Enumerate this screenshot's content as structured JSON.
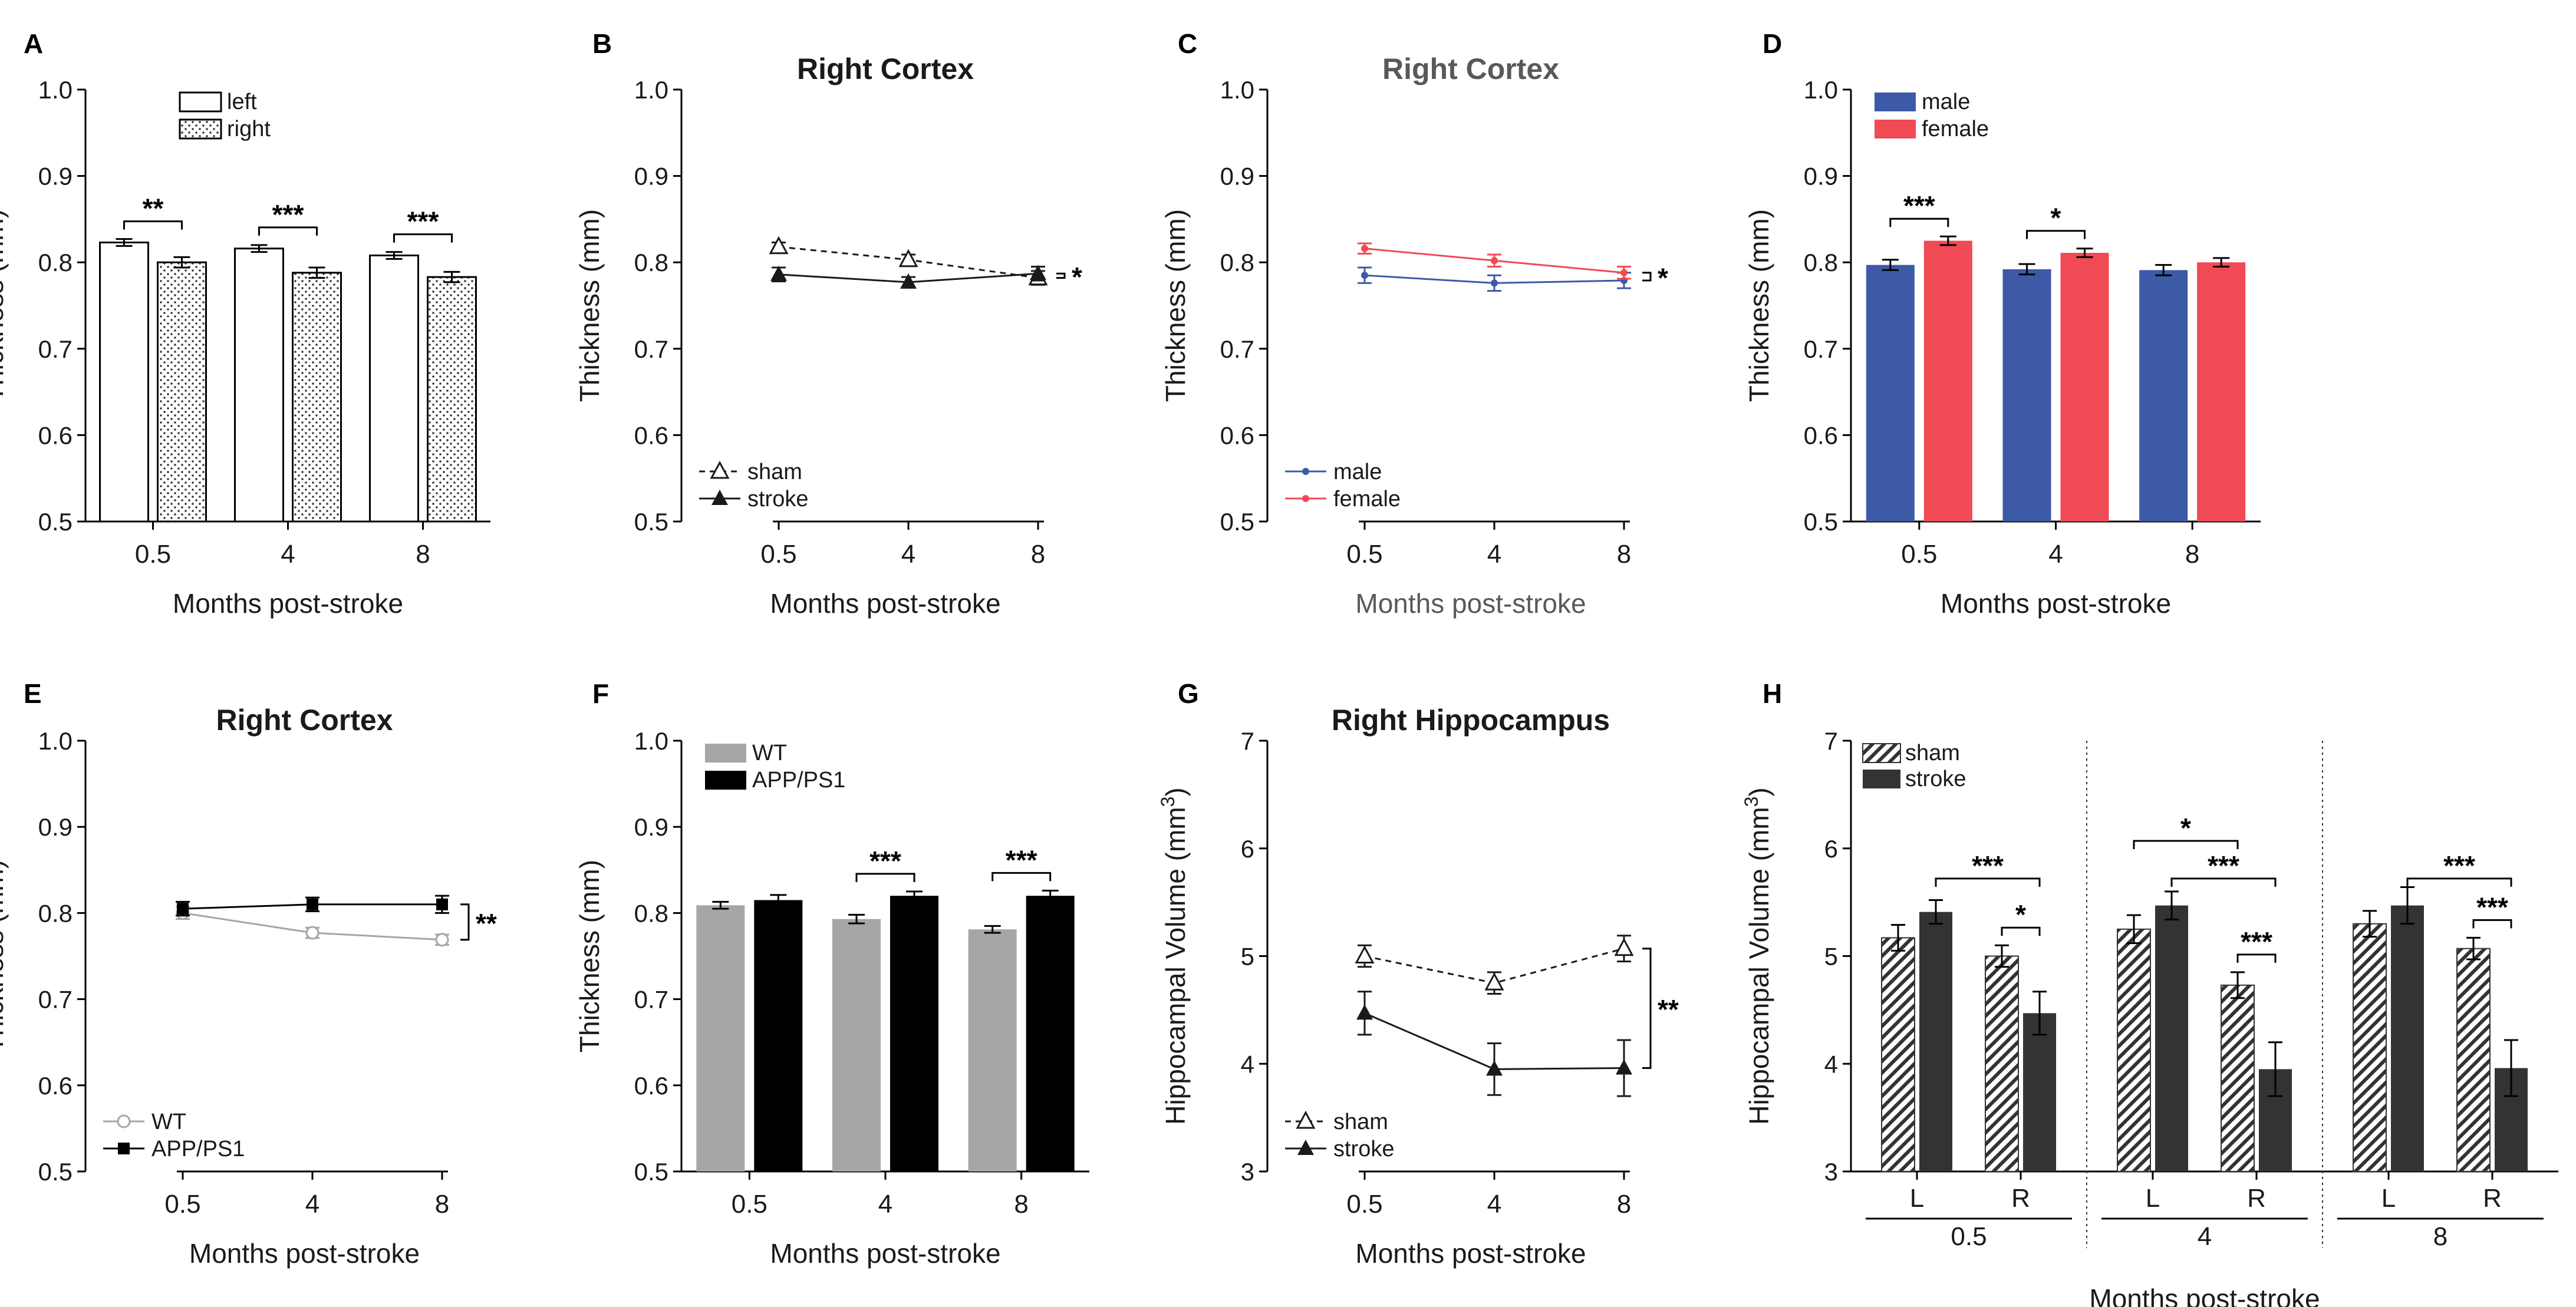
{
  "figure": {
    "shared_xlabel": "Months post-stroke",
    "shared_ylabel": "Thickness (mm)"
  },
  "colors": {
    "male": "#3c5aa6",
    "female": "#f04a55",
    "wt": "#a6a6a8",
    "app": "#000000",
    "stroke_bar": "#333333",
    "dark": "#1a1a1a",
    "gray_text": "#595959"
  },
  "chart_data": [
    {
      "panel": "A",
      "type": "bar",
      "title": "",
      "xlabel": "Months post-stroke",
      "ylabel": "Thickness (mm)",
      "ylim": [
        0.5,
        1.0
      ],
      "yticks": [
        "0.5",
        "0.6",
        "0.7",
        "0.8",
        "0.9",
        "1.0"
      ],
      "categories": [
        "0.5",
        "4",
        "8"
      ],
      "series": [
        {
          "name": "left",
          "values": [
            0.823,
            0.816,
            0.808
          ],
          "errors": [
            0.004,
            0.004,
            0.004
          ],
          "fill": "open"
        },
        {
          "name": "right",
          "values": [
            0.8,
            0.788,
            0.783
          ],
          "errors": [
            0.006,
            0.006,
            0.006
          ],
          "fill": "dots"
        }
      ],
      "legend": "top-left",
      "significance": [
        {
          "group": 0,
          "label": "**"
        },
        {
          "group": 1,
          "label": "***"
        },
        {
          "group": 2,
          "label": "***"
        }
      ]
    },
    {
      "panel": "B",
      "type": "line",
      "title": "Right Cortex",
      "xlabel": "Months post-stroke",
      "ylabel": "Thickness (mm)",
      "ylim": [
        0.5,
        1.0
      ],
      "yticks": [
        "0.5",
        "0.6",
        "0.7",
        "0.8",
        "0.9",
        "1.0"
      ],
      "x": [
        "0.5",
        "4",
        "8"
      ],
      "series": [
        {
          "name": "sham",
          "values": [
            0.818,
            0.803,
            0.782
          ],
          "errors": [
            0.005,
            0.006,
            0.008
          ],
          "style": "dashed",
          "marker": "open-triangle"
        },
        {
          "name": "stroke",
          "values": [
            0.786,
            0.777,
            0.787
          ],
          "errors": [
            0.008,
            0.006,
            0.008
          ],
          "style": "solid",
          "marker": "filled-triangle"
        }
      ],
      "legend": "bottom-left",
      "end_bracket": "*"
    },
    {
      "panel": "C",
      "type": "line",
      "title": "Right Cortex",
      "xlabel": "Months post-stroke",
      "ylabel": "Thickness (mm)",
      "ylim": [
        0.5,
        1.0
      ],
      "yticks": [
        "0.5",
        "0.6",
        "0.7",
        "0.8",
        "0.9",
        "1.0"
      ],
      "x": [
        "0.5",
        "4",
        "8"
      ],
      "series": [
        {
          "name": "male",
          "values": [
            0.785,
            0.776,
            0.779
          ],
          "errors": [
            0.009,
            0.009,
            0.009
          ],
          "color": "male"
        },
        {
          "name": "female",
          "values": [
            0.816,
            0.802,
            0.788
          ],
          "errors": [
            0.006,
            0.007,
            0.007
          ],
          "color": "female"
        }
      ],
      "legend": "bottom-left",
      "end_bracket": "*"
    },
    {
      "panel": "D",
      "type": "bar",
      "title": "",
      "xlabel": "Months post-stroke",
      "ylabel": "Thickness (mm)",
      "ylim": [
        0.5,
        1.0
      ],
      "yticks": [
        "0.5",
        "0.6",
        "0.7",
        "0.8",
        "0.9",
        "1.0"
      ],
      "categories": [
        "0.5",
        "4",
        "8"
      ],
      "series": [
        {
          "name": "male",
          "values": [
            0.797,
            0.792,
            0.791
          ],
          "errors": [
            0.006,
            0.006,
            0.006
          ],
          "fill": "male"
        },
        {
          "name": "female",
          "values": [
            0.825,
            0.811,
            0.8
          ],
          "errors": [
            0.005,
            0.005,
            0.005
          ],
          "fill": "female"
        }
      ],
      "legend": "top-left",
      "significance": [
        {
          "group": 0,
          "label": "***"
        },
        {
          "group": 1,
          "label": "*"
        }
      ]
    },
    {
      "panel": "E",
      "type": "line",
      "title": "Right Cortex",
      "xlabel": "Months post-stroke",
      "ylabel": "Thickness (mm)",
      "ylim": [
        0.5,
        1.0
      ],
      "yticks": [
        "0.5",
        "0.6",
        "0.7",
        "0.8",
        "0.9",
        "1.0"
      ],
      "x": [
        "0.5",
        "4",
        "8"
      ],
      "series": [
        {
          "name": "WT",
          "values": [
            0.8,
            0.777,
            0.769
          ],
          "errors": [
            0.007,
            0.006,
            0.006
          ],
          "color": "wt",
          "marker": "open-circle"
        },
        {
          "name": "APP/PS1",
          "values": [
            0.805,
            0.81,
            0.81
          ],
          "errors": [
            0.008,
            0.008,
            0.01
          ],
          "color": "app",
          "marker": "filled-square"
        }
      ],
      "legend": "bottom-left",
      "end_bracket": "**"
    },
    {
      "panel": "F",
      "type": "bar",
      "title": "",
      "xlabel": "Months post-stroke",
      "ylabel": "Thickness (mm)",
      "ylim": [
        0.5,
        1.0
      ],
      "yticks": [
        "0.5",
        "0.6",
        "0.7",
        "0.8",
        "0.9",
        "1.0"
      ],
      "categories": [
        "0.5",
        "4",
        "8"
      ],
      "series": [
        {
          "name": "WT",
          "values": [
            0.809,
            0.793,
            0.781
          ],
          "errors": [
            0.004,
            0.005,
            0.004
          ],
          "fill": "wt"
        },
        {
          "name": "APP/PS1",
          "values": [
            0.815,
            0.82,
            0.82
          ],
          "errors": [
            0.006,
            0.005,
            0.006
          ],
          "fill": "app"
        }
      ],
      "legend": "top-left",
      "significance": [
        {
          "group": 1,
          "label": "***"
        },
        {
          "group": 2,
          "label": "***"
        }
      ]
    },
    {
      "panel": "G",
      "type": "line",
      "title": "Right Hippocampus",
      "xlabel": "Months post-stroke",
      "ylabel": "Hippocampal Volume (mm",
      "ylabel_sup": "3",
      "ylabel_end": ")",
      "ylim": [
        3,
        7
      ],
      "yticks": [
        "3",
        "4",
        "5",
        "6",
        "7"
      ],
      "x": [
        "0.5",
        "4",
        "8"
      ],
      "series": [
        {
          "name": "sham",
          "values": [
            5.0,
            4.75,
            5.07
          ],
          "errors": [
            0.1,
            0.1,
            0.12
          ],
          "style": "dashed",
          "marker": "open-triangle"
        },
        {
          "name": "stroke",
          "values": [
            4.47,
            3.95,
            3.96
          ],
          "errors": [
            0.2,
            0.24,
            0.26
          ],
          "style": "solid",
          "marker": "filled-triangle"
        }
      ],
      "legend": "bottom-left",
      "end_bracket": "**"
    },
    {
      "panel": "H",
      "type": "bar",
      "title": "",
      "xlabel": "Months post-stroke",
      "ylabel": "Hippocampal Volume (mm",
      "ylabel_sup": "3",
      "ylabel_end": ")",
      "ylim": [
        3,
        7
      ],
      "yticks": [
        "3",
        "4",
        "5",
        "6",
        "7"
      ],
      "groups": [
        "0.5",
        "4",
        "8"
      ],
      "subgroups": [
        "L",
        "R"
      ],
      "series": [
        {
          "name": "sham",
          "values": [
            5.17,
            5.0,
            5.25,
            4.73,
            5.3,
            5.07
          ],
          "errors": [
            0.12,
            0.1,
            0.13,
            0.12,
            0.12,
            0.1
          ],
          "fill": "hatch"
        },
        {
          "name": "stroke",
          "values": [
            5.41,
            4.47,
            5.47,
            3.95,
            5.47,
            3.96
          ],
          "errors": [
            0.11,
            0.2,
            0.13,
            0.25,
            0.17,
            0.26
          ],
          "fill": "stroke_bar"
        }
      ],
      "legend": "top-left",
      "significance": [
        {
          "from": [
            0,
            1
          ],
          "to": [
            1,
            1
          ],
          "label": "***"
        },
        {
          "from": [
            1,
            0
          ],
          "to": [
            1,
            1
          ],
          "label": "*"
        },
        {
          "from": [
            2,
            0
          ],
          "to": [
            3,
            0
          ],
          "label": "*"
        },
        {
          "from": [
            2,
            1
          ],
          "to": [
            3,
            1
          ],
          "label": "***"
        },
        {
          "from": [
            3,
            0
          ],
          "to": [
            3,
            1
          ],
          "label": "***"
        },
        {
          "from": [
            4,
            1
          ],
          "to": [
            5,
            1
          ],
          "label": "***"
        },
        {
          "from": [
            5,
            0
          ],
          "to": [
            5,
            1
          ],
          "label": "***"
        }
      ]
    }
  ]
}
